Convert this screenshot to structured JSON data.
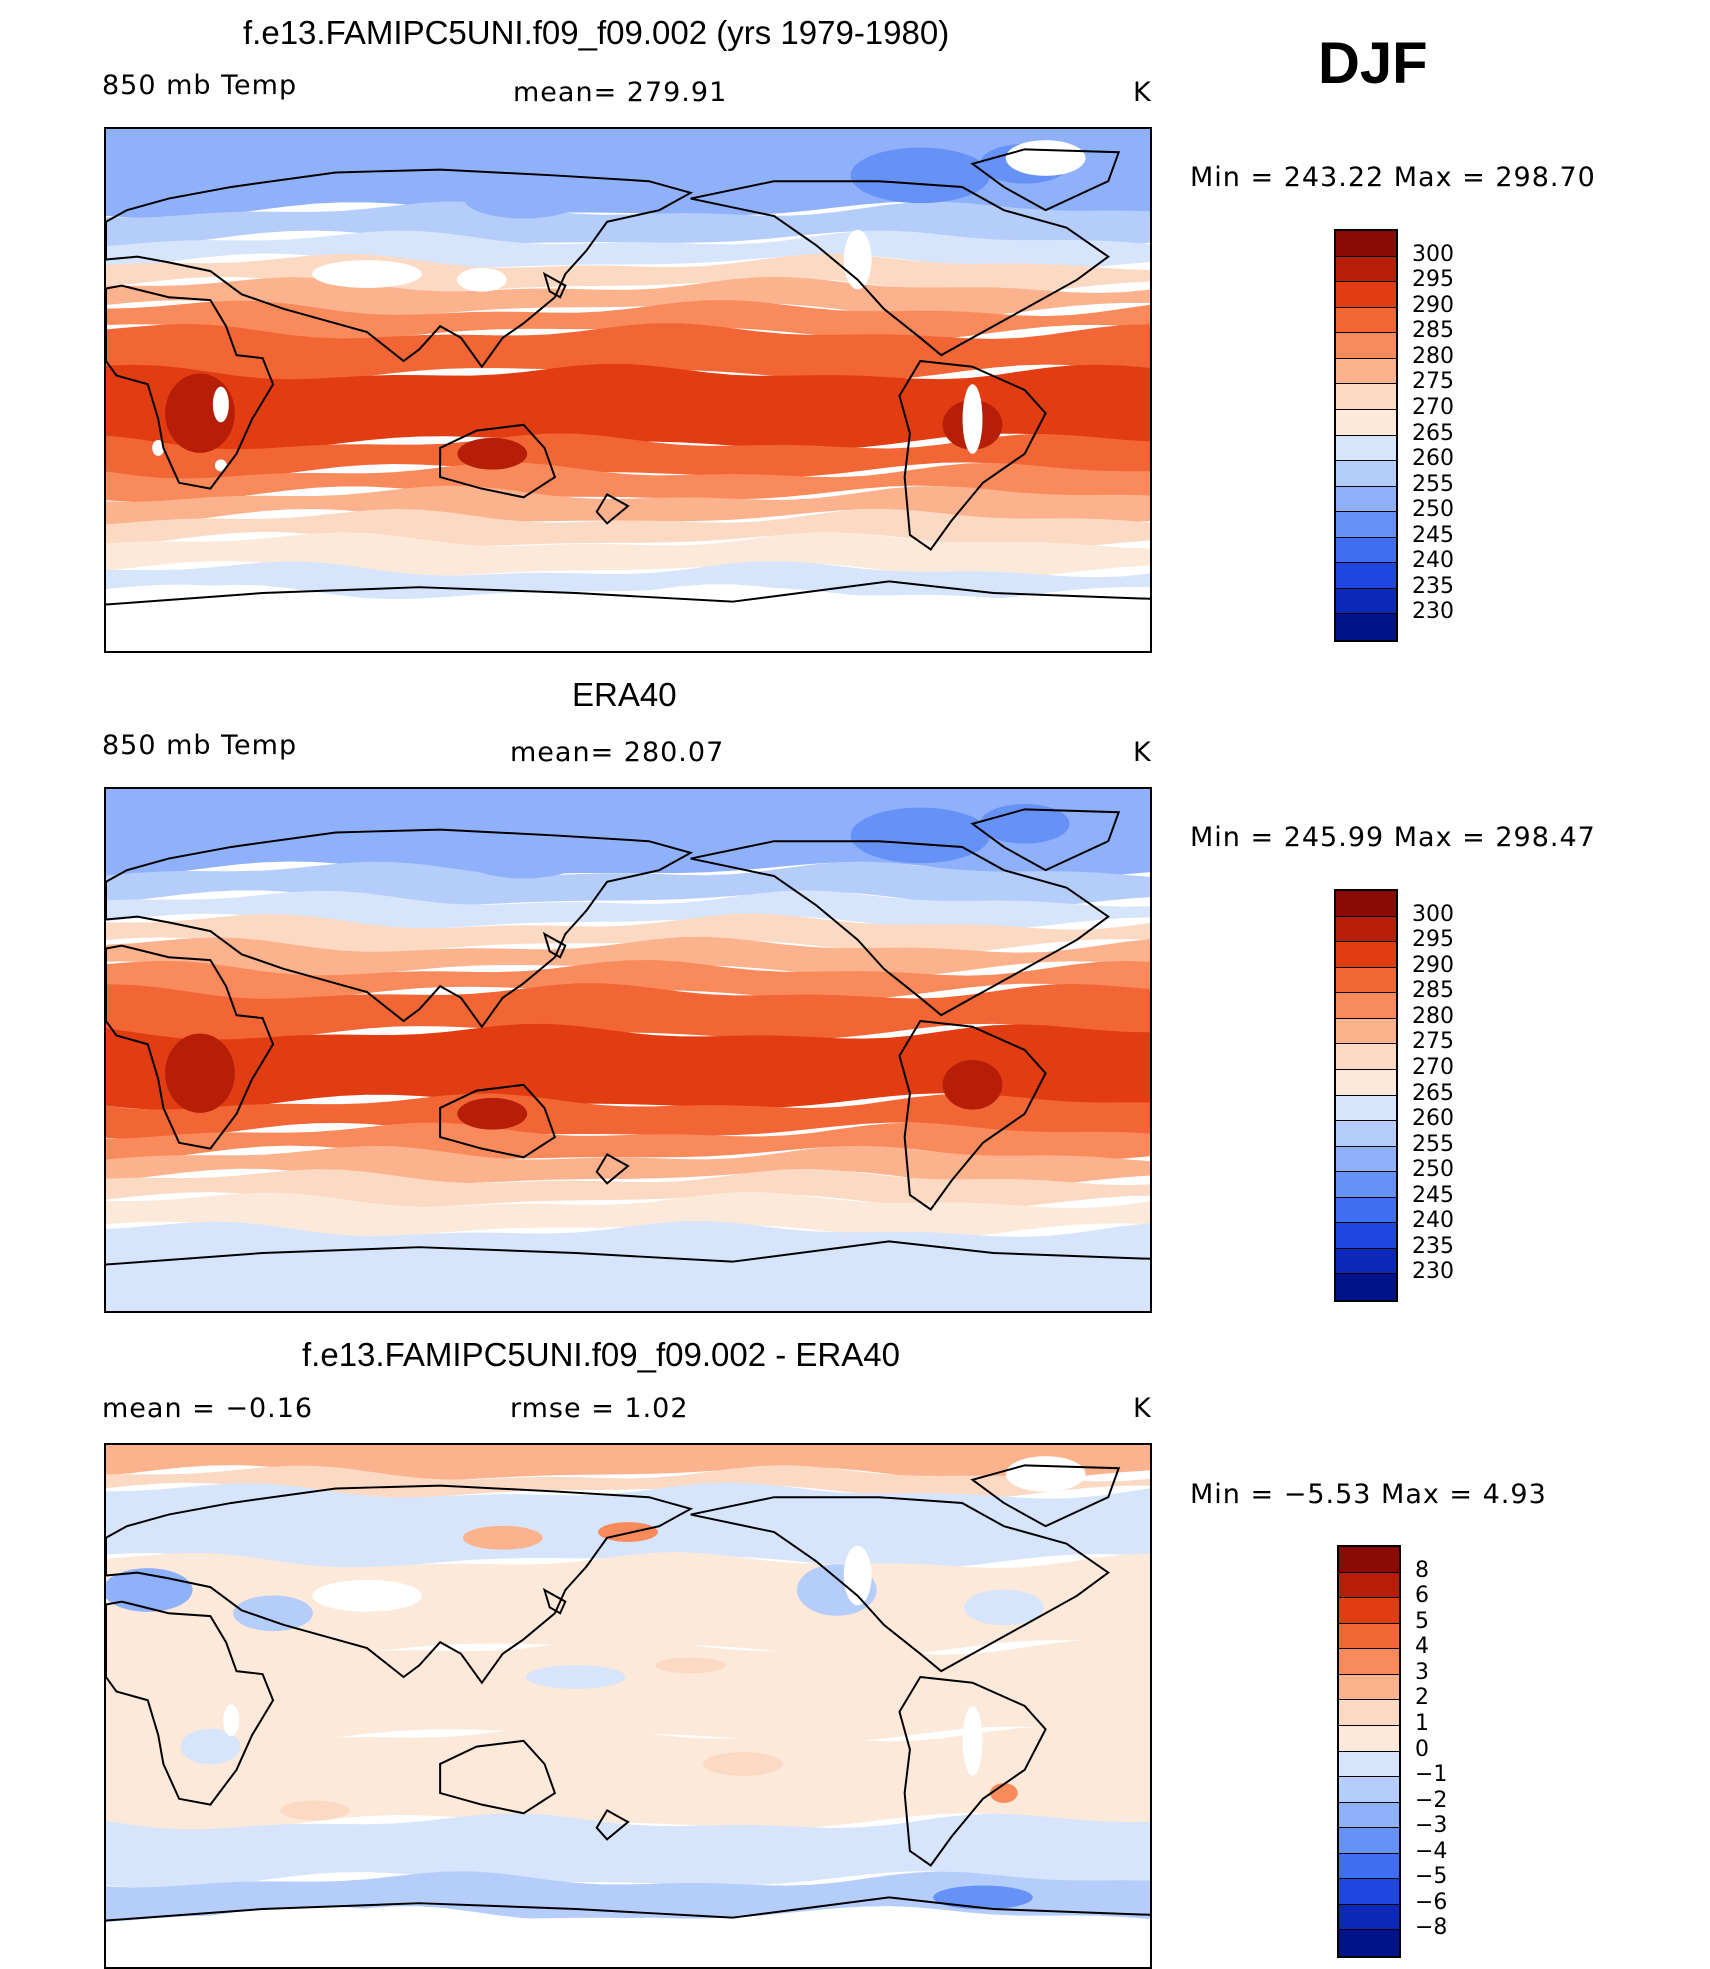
{
  "season": "DJF",
  "panels": [
    {
      "title": "f.e13.FAMIPC5UNI.f09_f09.002 (yrs 1979-1980)",
      "left_label": "850 mb Temp",
      "mid_label": "mean=  279.91",
      "unit": "K",
      "minmax": "Min  =  243.22  Max  =  298.70",
      "kind": "abs",
      "bands": [
        {
          "from": 62,
          "to": 90,
          "color": "#8fb0fa"
        },
        {
          "from": 52,
          "to": 62,
          "color": "#b5cdfb"
        },
        {
          "from": 44,
          "to": 52,
          "color": "#d6e5fb"
        },
        {
          "from": 36,
          "to": 44,
          "color": "#fbd9c3"
        },
        {
          "from": 28,
          "to": 36,
          "color": "#fbb28d"
        },
        {
          "from": 20,
          "to": 28,
          "color": "#f98a5c"
        },
        {
          "from": 6,
          "to": 20,
          "color": "#f26535"
        },
        {
          "from": -18,
          "to": 6,
          "color": "#e13c12"
        },
        {
          "from": -28,
          "to": -18,
          "color": "#f26535"
        },
        {
          "from": -36,
          "to": -28,
          "color": "#f98a5c"
        },
        {
          "from": -44,
          "to": -36,
          "color": "#fbb28d"
        },
        {
          "from": -52,
          "to": -44,
          "color": "#fbd9c3"
        },
        {
          "from": -62,
          "to": -52,
          "color": "#fde9d9"
        },
        {
          "from": -70,
          "to": -62,
          "color": "#d6e5fb"
        },
        {
          "from": -90,
          "to": -70,
          "color": "#ffffff"
        }
      ]
    },
    {
      "title": "ERA40",
      "left_label": "850 mb Temp",
      "mid_label": "mean=  280.07",
      "unit": "K",
      "minmax": "Min  =  245.99  Max  =  298.47",
      "kind": "abs",
      "bands": [
        {
          "from": 62,
          "to": 90,
          "color": "#8fb0fa"
        },
        {
          "from": 52,
          "to": 62,
          "color": "#b5cdfb"
        },
        {
          "from": 44,
          "to": 52,
          "color": "#d6e5fb"
        },
        {
          "from": 36,
          "to": 44,
          "color": "#fbd9c3"
        },
        {
          "from": 28,
          "to": 36,
          "color": "#fbb28d"
        },
        {
          "from": 20,
          "to": 28,
          "color": "#f98a5c"
        },
        {
          "from": 6,
          "to": 20,
          "color": "#f26535"
        },
        {
          "from": -18,
          "to": 6,
          "color": "#e13c12"
        },
        {
          "from": -28,
          "to": -18,
          "color": "#f26535"
        },
        {
          "from": -36,
          "to": -28,
          "color": "#f98a5c"
        },
        {
          "from": -44,
          "to": -36,
          "color": "#fbb28d"
        },
        {
          "from": -52,
          "to": -44,
          "color": "#fbd9c3"
        },
        {
          "from": -62,
          "to": -52,
          "color": "#fde9d9"
        },
        {
          "from": -90,
          "to": -62,
          "color": "#d6e5fb"
        }
      ]
    },
    {
      "title": "f.e13.FAMIPC5UNI.f09_f09.002 - ERA40",
      "left_label": "mean  =    −0.16",
      "mid_label": "rmse  =     1.02",
      "unit": "K",
      "minmax": "Min  =    −5.53  Max  =      4.93",
      "kind": "diff",
      "bands": [
        {
          "from": 80,
          "to": 90,
          "color": "#fbb28d"
        },
        {
          "from": 74,
          "to": 80,
          "color": "#fbd9c3"
        },
        {
          "from": 50,
          "to": 74,
          "color": "#d6e5fb"
        },
        {
          "from": 20,
          "to": 50,
          "color": "#fde9d9"
        },
        {
          "from": -10,
          "to": 20,
          "color": "#fde9d9"
        },
        {
          "from": -40,
          "to": -10,
          "color": "#fde9d9"
        },
        {
          "from": -60,
          "to": -40,
          "color": "#d6e5fb"
        },
        {
          "from": -72,
          "to": -60,
          "color": "#b5cdfb"
        },
        {
          "from": -90,
          "to": -72,
          "color": "#ffffff"
        }
      ]
    }
  ],
  "colorbar_abs": {
    "labels": [
      "300",
      "295",
      "290",
      "285",
      "280",
      "275",
      "270",
      "265",
      "260",
      "255",
      "250",
      "245",
      "240",
      "235",
      "230"
    ],
    "colors": [
      "#8a0a05",
      "#b61e08",
      "#e13c12",
      "#f26535",
      "#f98a5c",
      "#fbb28d",
      "#fbd9c3",
      "#fde9d9",
      "#d6e5fb",
      "#b5cdfb",
      "#8fb0fa",
      "#6691f6",
      "#3f6ef0",
      "#1f46e0",
      "#0c28b8",
      "#001487"
    ]
  },
  "colorbar_diff": {
    "labels": [
      "8",
      "6",
      "5",
      "4",
      "3",
      "2",
      "1",
      "0",
      "−1",
      "−2",
      "−3",
      "−4",
      "−5",
      "−6",
      "−8"
    ],
    "colors": [
      "#8a0a05",
      "#b61e08",
      "#e13c12",
      "#f26535",
      "#f98a5c",
      "#fbb28d",
      "#fbd9c3",
      "#fde9d9",
      "#d6e5fb",
      "#b5cdfb",
      "#8fb0fa",
      "#6691f6",
      "#3f6ef0",
      "#1f46e0",
      "#0c28b8",
      "#001487"
    ]
  }
}
